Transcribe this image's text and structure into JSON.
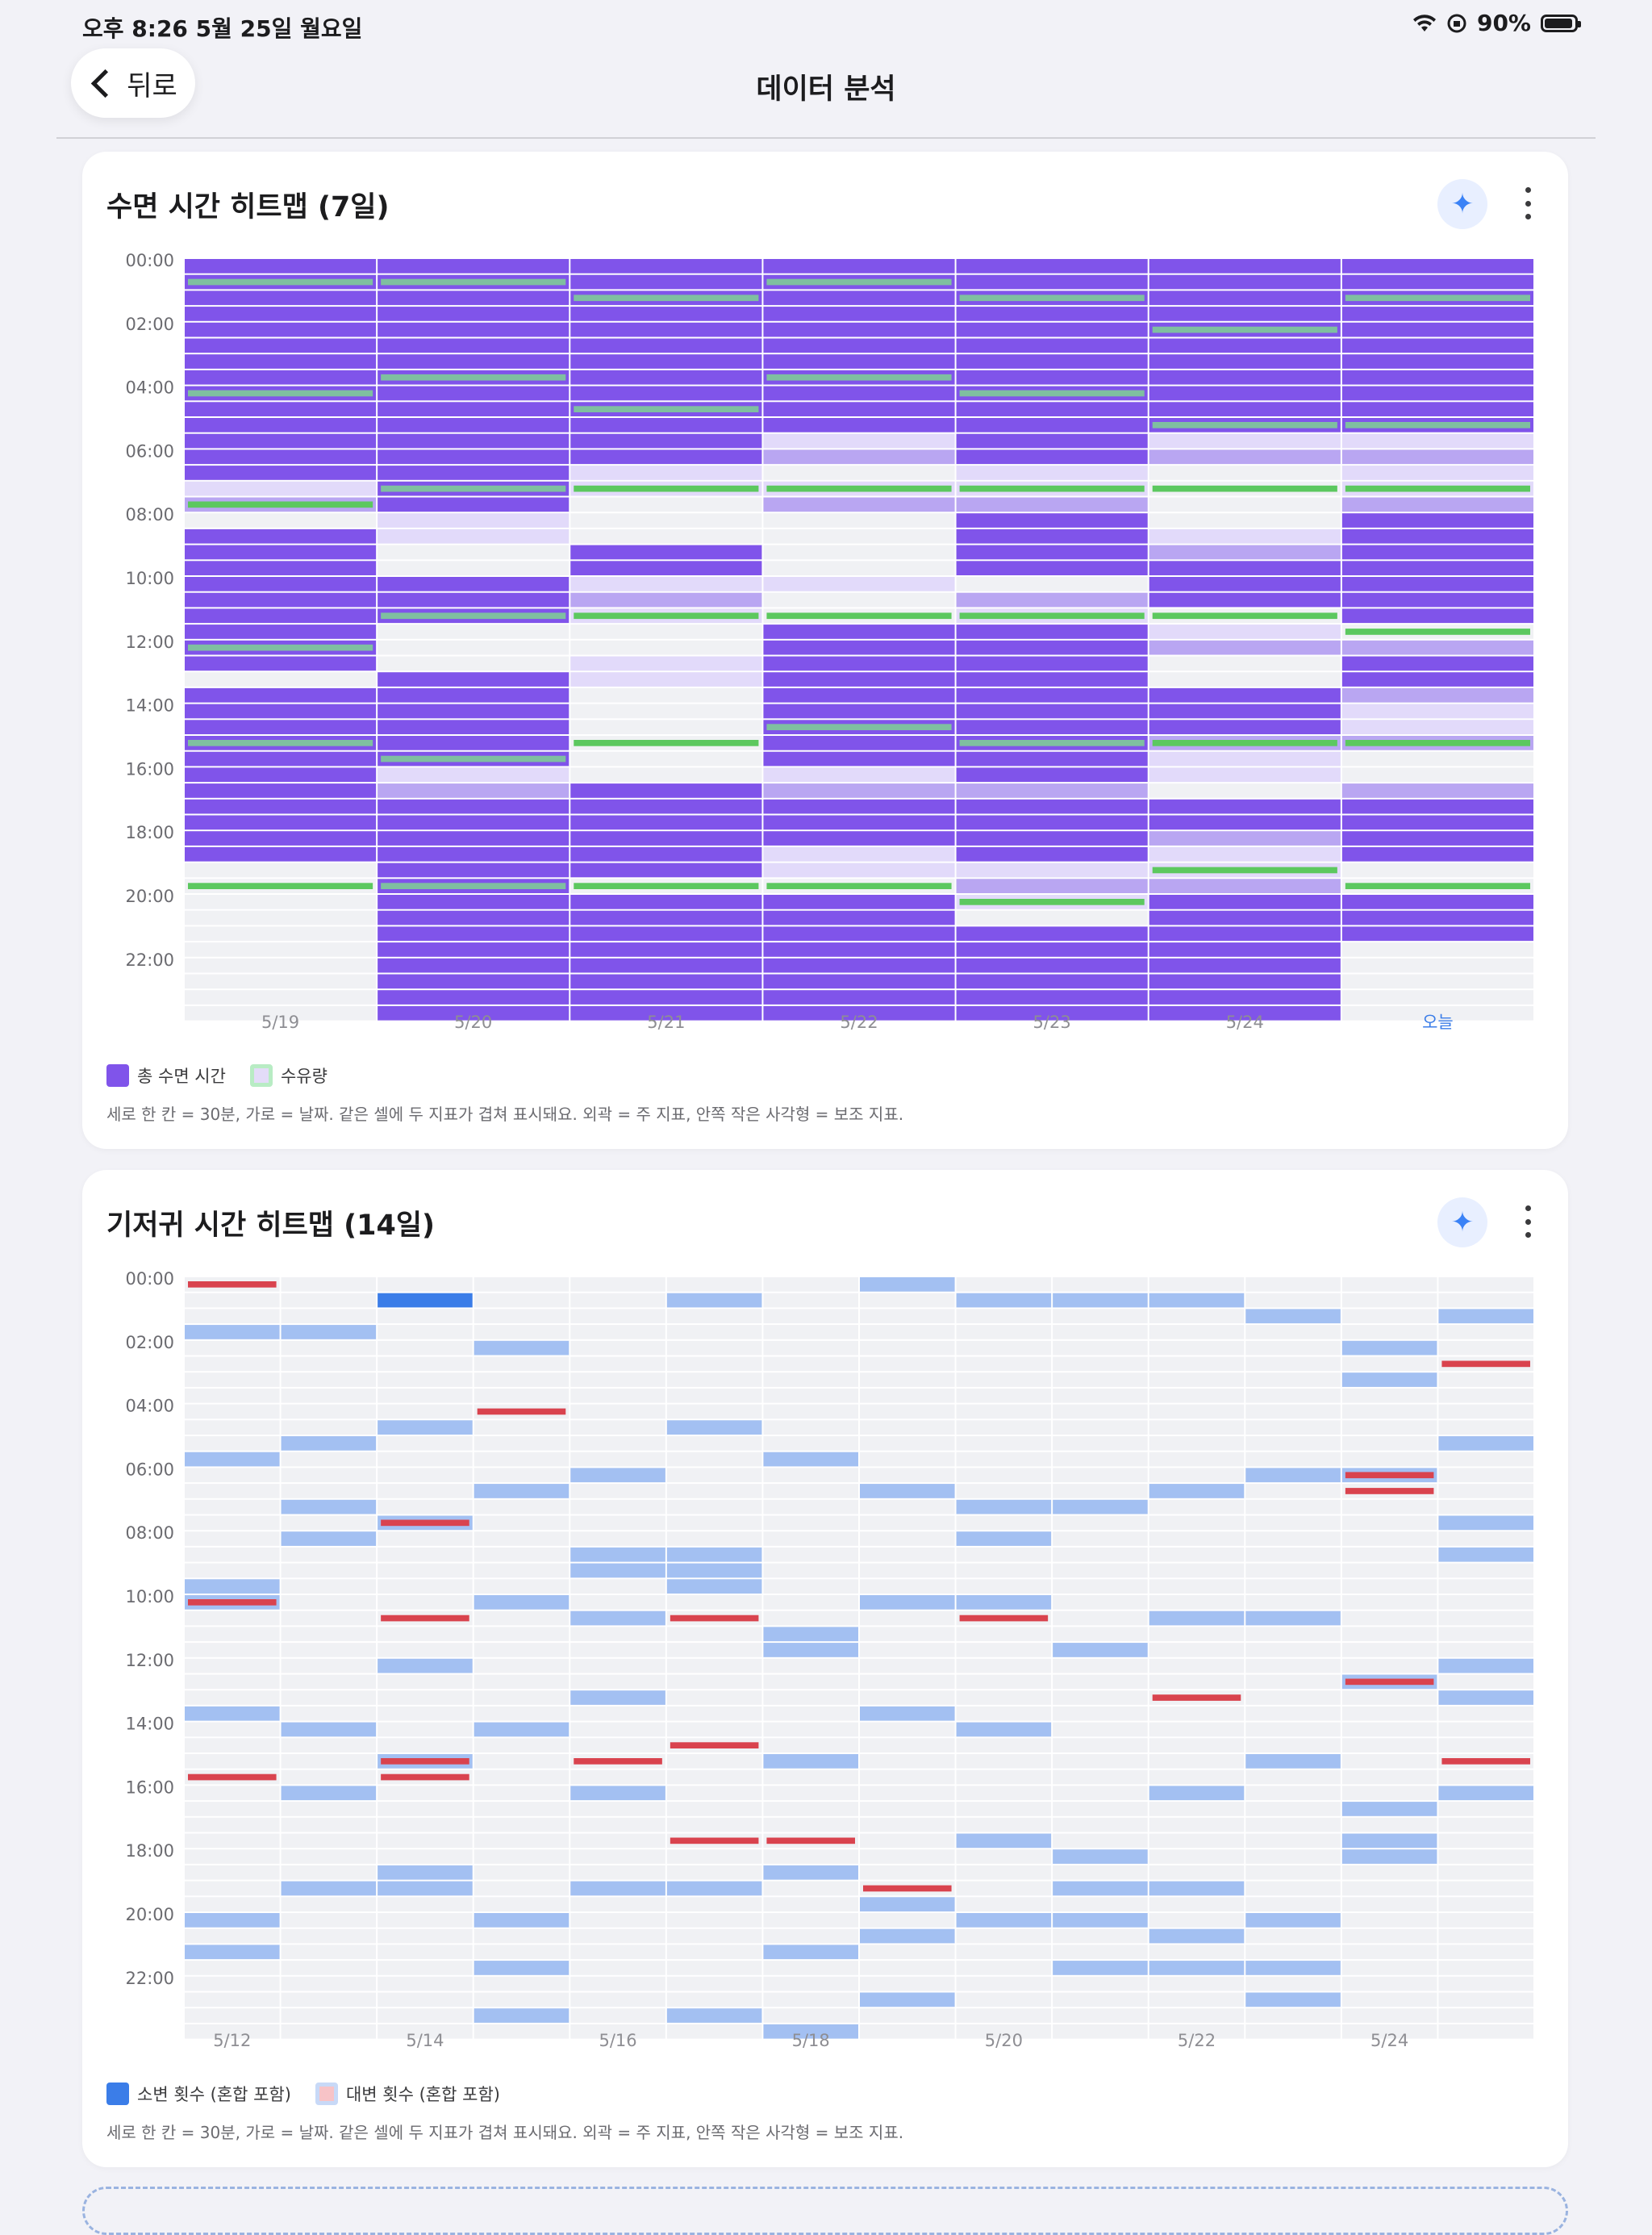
{
  "status_bar": {
    "time": "오후 8:26   5월 25일 월요일",
    "battery": "90%"
  },
  "nav": {
    "back_label": "뒤로",
    "title": "데이터 분석"
  },
  "sleep_card": {
    "title": "수면 시간 히트맵 (7일)",
    "y_ticks": [
      "00:00",
      "02:00",
      "04:00",
      "06:00",
      "08:00",
      "10:00",
      "12:00",
      "14:00",
      "16:00",
      "18:00",
      "20:00",
      "22:00"
    ],
    "legend": [
      {
        "label": "총 수면 시간",
        "color": "#8054ea"
      },
      {
        "label": "수유량",
        "color": "#b8ecc4"
      }
    ],
    "note": "세로 한 칸 = 30분, 가로 = 날짜. 같은 셀에 두 지표가 겹쳐 표시돼요. 외곽 = 주 지표, 안쪽 작은 사각형 = 보조 지표."
  },
  "diaper_card": {
    "title": "기저귀 시간 히트맵 (14일)",
    "y_ticks": [
      "00:00",
      "02:00",
      "04:00",
      "06:00",
      "08:00",
      "10:00",
      "12:00",
      "14:00",
      "16:00",
      "18:00",
      "20:00",
      "22:00"
    ],
    "legend": [
      {
        "label": "소변 횟수 (혼합 포함)",
        "color": "#3b7de8"
      },
      {
        "label": "대변 횟수 (혼합 포함)",
        "color": "#f7c3c7"
      }
    ],
    "note": "세로 한 칸 = 30분, 가로 = 날짜. 같은 셀에 두 지표가 겹쳐 표시돼요. 외곽 = 주 지표, 안쪽 작은 사각형 = 보조 지표."
  },
  "chart_data": [
    {
      "type": "heatmap",
      "title": "수면 시간 히트맵 (7일)",
      "x_labels": [
        "5/19",
        "5/20",
        "5/21",
        "5/22",
        "5/23",
        "5/24",
        "오늘"
      ],
      "highlight_x": "오늘",
      "slot_minutes": 30,
      "slots_per_day": 48,
      "series": [
        {
          "name": "총 수면 시간",
          "kind": "primary",
          "color": "#8054ea"
        },
        {
          "name": "수유량",
          "kind": "secondary",
          "color": "#5cc85f"
        }
      ],
      "sleep_ranges": [
        [
          [
            0,
            13
          ],
          [
            17,
            25
          ],
          [
            27,
            31
          ],
          [
            32,
            37
          ]
        ],
        [
          [
            0,
            5
          ],
          [
            6,
            15
          ],
          [
            20,
            22
          ],
          [
            26,
            31
          ],
          [
            34,
            47
          ]
        ],
        [
          [
            0,
            12
          ],
          [
            18,
            19
          ],
          [
            33,
            38
          ],
          [
            40,
            47
          ]
        ],
        [
          [
            0,
            10
          ],
          [
            23,
            27
          ],
          [
            28,
            31
          ],
          [
            34,
            36
          ],
          [
            40,
            47
          ]
        ],
        [
          [
            0,
            12
          ],
          [
            16,
            19
          ],
          [
            23,
            32
          ],
          [
            34,
            37
          ],
          [
            42,
            47
          ]
        ],
        [
          [
            0,
            10
          ],
          [
            19,
            21
          ],
          [
            27,
            29
          ],
          [
            34,
            35
          ],
          [
            40,
            47
          ]
        ],
        [
          [
            0,
            10
          ],
          [
            16,
            22
          ],
          [
            25,
            26
          ],
          [
            34,
            37
          ],
          [
            40,
            42
          ]
        ]
      ],
      "light_ranges": [
        [
          [
            14,
            15
          ],
          [
            19,
            20
          ],
          [
            23,
            24
          ],
          [
            28,
            29
          ],
          [
            32,
            32
          ],
          [
            36,
            36
          ]
        ],
        [
          [
            16,
            17
          ],
          [
            26,
            26
          ],
          [
            32,
            33
          ]
        ],
        [
          [
            13,
            14
          ],
          [
            20,
            22
          ],
          [
            25,
            26
          ],
          [
            33,
            36
          ]
        ],
        [
          [
            11,
            12
          ],
          [
            14,
            15
          ],
          [
            20,
            20
          ],
          [
            29,
            32
          ],
          [
            33,
            33
          ],
          [
            37,
            38
          ]
        ],
        [
          [
            13,
            15
          ],
          [
            21,
            22
          ],
          [
            33,
            33
          ],
          [
            38,
            40
          ]
        ],
        [
          [
            11,
            12
          ],
          [
            17,
            18
          ],
          [
            23,
            24
          ],
          [
            28,
            32
          ],
          [
            35,
            37
          ],
          [
            38,
            41
          ]
        ],
        [
          [
            11,
            15
          ],
          [
            19,
            20
          ],
          [
            24,
            24
          ],
          [
            27,
            30
          ],
          [
            33,
            33
          ],
          [
            35,
            36
          ]
        ]
      ],
      "feeds": [
        [
          1,
          8,
          15,
          24,
          30,
          39
        ],
        [
          1,
          7,
          14,
          22,
          31,
          39
        ],
        [
          2,
          9,
          14,
          22,
          30,
          39
        ],
        [
          1,
          7,
          14,
          22,
          29,
          39
        ],
        [
          2,
          8,
          14,
          22,
          30,
          40
        ],
        [
          4,
          10,
          14,
          22,
          30,
          38
        ],
        [
          2,
          10,
          14,
          23,
          30,
          39
        ]
      ]
    },
    {
      "type": "heatmap",
      "title": "기저귀 시간 히트맵 (14일)",
      "x_labels": [
        "5/12",
        "5/14",
        "5/16",
        "5/18",
        "5/20",
        "5/22",
        "5/24"
      ],
      "columns": 14,
      "slot_minutes": 30,
      "slots_per_day": 48,
      "series": [
        {
          "name": "소변 횟수 (혼합 포함)",
          "kind": "primary",
          "color": "#3b7de8"
        },
        {
          "name": "대변 횟수 (혼합 포함)",
          "kind": "secondary",
          "color": "#d9434e"
        }
      ],
      "wet": [
        [
          3,
          11,
          19,
          27,
          40,
          42,
          20
        ],
        [
          3,
          10,
          14,
          16,
          28,
          32,
          38
        ],
        [
          1,
          9,
          15,
          24,
          30,
          37,
          38
        ],
        [
          4,
          13,
          20,
          28,
          40,
          43,
          46
        ],
        [
          12,
          17,
          18,
          21,
          26,
          32,
          38
        ],
        [
          1,
          9,
          18,
          19,
          38,
          46,
          17
        ],
        [
          11,
          22,
          23,
          30,
          37,
          42,
          47
        ],
        [
          0,
          13,
          20,
          27,
          39,
          41,
          45
        ],
        [
          1,
          14,
          16,
          20,
          28,
          35,
          40
        ],
        [
          1,
          14,
          23,
          36,
          40,
          43,
          38
        ],
        [
          1,
          13,
          21,
          32,
          38,
          41,
          43
        ],
        [
          2,
          12,
          21,
          30,
          40,
          43,
          45
        ],
        [
          4,
          6,
          12,
          25,
          33,
          35,
          36
        ],
        [
          2,
          10,
          15,
          17,
          24,
          26,
          32
        ]
      ],
      "wet_strong": [
        [
          2,
          1
        ]
      ],
      "dirty": [
        [
          0,
          20,
          31
        ],
        [],
        [
          15,
          21,
          30,
          31
        ],
        [
          8
        ],
        [
          30
        ],
        [
          21,
          29,
          35
        ],
        [
          35
        ],
        [
          38
        ],
        [
          21
        ],
        [],
        [
          26
        ],
        [],
        [
          12,
          13,
          25
        ],
        [
          5,
          30
        ]
      ]
    }
  ]
}
